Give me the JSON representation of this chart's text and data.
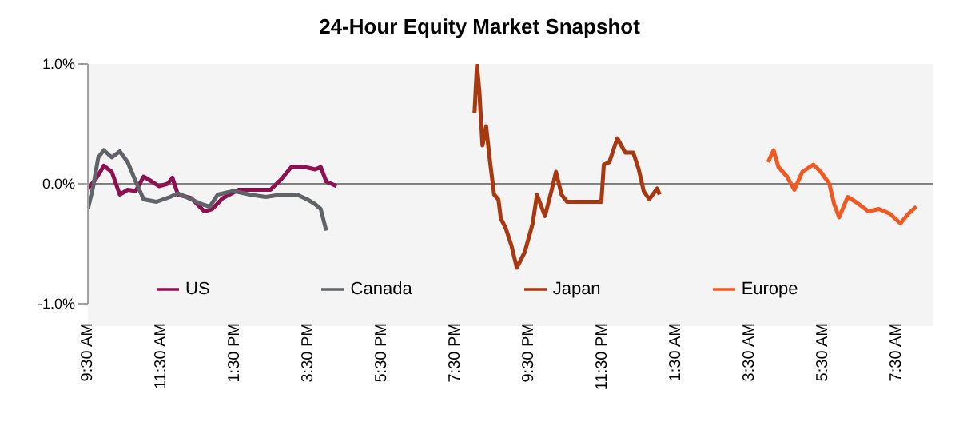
{
  "chart_data": {
    "type": "line",
    "title": "24-Hour Equity Market Snapshot",
    "xlim": [
      "--01-01T09:30",
      "--01-02T08:30"
    ],
    "xticks": [
      {
        "value": "--01-01T09:30",
        "label": "9:30 AM"
      },
      {
        "value": "--01-01T11:30",
        "label": "11:30 AM"
      },
      {
        "value": "--01-01T13:30",
        "label": "1:30 PM"
      },
      {
        "value": "--01-01T15:30",
        "label": "3:30 PM"
      },
      {
        "value": "--01-01T17:30",
        "label": "5:30 PM"
      },
      {
        "value": "--01-01T19:30",
        "label": "7:30 PM"
      },
      {
        "value": "--01-01T21:30",
        "label": "9:30 PM"
      },
      {
        "value": "--01-01T23:30",
        "label": "11:30 PM"
      },
      {
        "value": "--01-02T01:30",
        "label": "1:30 AM"
      },
      {
        "value": "--01-02T03:30",
        "label": "3:30 AM"
      },
      {
        "value": "--01-02T05:30",
        "label": "5:30 AM"
      },
      {
        "value": "--01-02T07:30",
        "label": "7:30 AM"
      }
    ],
    "ylim": [
      -1,
      1
    ],
    "yticks": [
      {
        "value": -1,
        "label": "-1.0%"
      },
      {
        "value": 0,
        "label": "0.0%"
      },
      {
        "value": 1,
        "label": "1.0%"
      }
    ],
    "ref_lines": [
      {
        "axis": "y",
        "value": 0,
        "color": "#808080"
      }
    ],
    "grid": false,
    "legend": "bottom",
    "marker": "none",
    "line_style": "solid",
    "series": [
      {
        "name": "US",
        "color": "#8e1050",
        "x": [
          "--01-01T09:30",
          "--01-01T09:43",
          "--01-01T09:56",
          "--01-01T10:09",
          "--01-01T10:22",
          "--01-01T10:35",
          "--01-01T10:48",
          "--01-01T11:01",
          "--01-01T11:14",
          "--01-01T11:26",
          "--01-01T11:40",
          "--01-01T11:48",
          "--01-01T11:57",
          "--01-01T12:19",
          "--01-01T12:40",
          "--01-01T12:53",
          "--01-01T13:10",
          "--01-01T13:36",
          "--01-01T14:02",
          "--01-01T14:28",
          "--01-01T14:46",
          "--01-01T15:02",
          "--01-01T15:24",
          "--01-01T15:41",
          "--01-01T15:50",
          "--01-01T15:59",
          "--01-01T16:16"
        ],
        "values": [
          -0.04,
          0.04,
          0.15,
          0.1,
          -0.09,
          -0.05,
          -0.06,
          0.06,
          0.02,
          -0.02,
          0,
          0.05,
          -0.09,
          -0.12,
          -0.23,
          -0.21,
          -0.12,
          -0.05,
          -0.05,
          -0.05,
          0.04,
          0.14,
          0.14,
          0.12,
          0.14,
          0.02,
          -0.02
        ]
      },
      {
        "name": "Canada",
        "color": "#606468",
        "x": [
          "--01-01T09:30",
          "--01-01T09:38",
          "--01-01T09:47",
          "--01-01T09:56",
          "--01-01T10:09",
          "--01-01T10:22",
          "--01-01T10:35",
          "--01-01T10:48",
          "--01-01T11:01",
          "--01-01T11:22",
          "--01-01T11:44",
          "--01-01T11:57",
          "--01-01T12:19",
          "--01-01T12:36",
          "--01-01T12:49",
          "--01-01T13:02",
          "--01-01T13:28",
          "--01-01T13:54",
          "--01-01T14:20",
          "--01-01T14:46",
          "--01-01T15:11",
          "--01-01T15:28",
          "--01-01T15:41",
          "--01-01T15:50",
          "--01-01T15:59"
        ],
        "values": [
          -0.21,
          -0.04,
          0.22,
          0.28,
          0.22,
          0.27,
          0.18,
          0.02,
          -0.13,
          -0.15,
          -0.11,
          -0.08,
          -0.13,
          -0.17,
          -0.19,
          -0.09,
          -0.06,
          -0.09,
          -0.11,
          -0.09,
          -0.09,
          -0.13,
          -0.17,
          -0.21,
          -0.39
        ]
      },
      {
        "name": "Japan",
        "color": "#a8380f",
        "x": [
          "--01-01T20:01",
          "--01-01T20:05",
          "--01-01T20:09",
          "--01-01T20:14",
          "--01-01T20:20",
          "--01-01T20:26",
          "--01-01T20:33",
          "--01-01T20:40",
          "--01-01T20:44",
          "--01-01T20:52",
          "--01-01T21:01",
          "--01-01T21:10",
          "--01-01T21:23",
          "--01-01T21:36",
          "--01-01T21:43",
          "--01-01T21:56",
          "--01-01T22:07",
          "--01-01T22:14",
          "--01-01T22:23",
          "--01-01T22:32",
          "--01-01T23:28",
          "--01-01T23:32",
          "--01-01T23:41",
          "--01-01T23:54",
          "--01-02T00:07",
          "--01-02T00:20",
          "--01-02T00:29",
          "--01-02T00:37",
          "--01-02T00:46",
          "--01-02T00:59",
          "--01-02T01:03"
        ],
        "values": [
          0.59,
          0.99,
          0.77,
          0.32,
          0.48,
          0.2,
          -0.09,
          -0.13,
          -0.29,
          -0.37,
          -0.51,
          -0.7,
          -0.57,
          -0.33,
          -0.09,
          -0.27,
          -0.05,
          0.1,
          -0.09,
          -0.15,
          -0.15,
          0.16,
          0.18,
          0.38,
          0.26,
          0.26,
          0.12,
          -0.06,
          -0.13,
          -0.04,
          -0.09
        ]
      },
      {
        "name": "Europe",
        "color": "#f05a22",
        "x": [
          "--01-02T04:00",
          "--01-02T04:09",
          "--01-02T04:17",
          "--01-02T04:31",
          "--01-02T04:43",
          "--01-02T04:56",
          "--01-02T05:14",
          "--01-02T05:26",
          "--01-02T05:40",
          "--01-02T05:48",
          "--01-02T05:56",
          "--01-02T06:10",
          "--01-02T06:23",
          "--01-02T06:44",
          "--01-02T07:01",
          "--01-02T07:19",
          "--01-02T07:36",
          "--01-02T07:49",
          "--01-02T08:02"
        ],
        "values": [
          0.18,
          0.28,
          0.14,
          0.06,
          -0.05,
          0.1,
          0.16,
          0.1,
          0,
          -0.17,
          -0.28,
          -0.11,
          -0.15,
          -0.23,
          -0.21,
          -0.25,
          -0.33,
          -0.25,
          -0.19
        ]
      }
    ]
  }
}
